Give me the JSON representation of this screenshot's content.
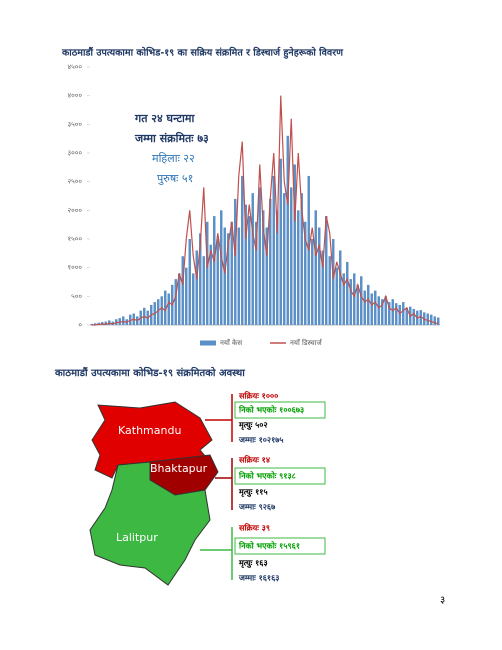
{
  "chart_data": {
    "type": "bar-line",
    "title": "काठमाडौं उपत्यकामा कोभिड-१९ का सक्रिय संक्रमित र डिस्चार्ज हुनेहरूको विवरण",
    "annotation": [
      "गत २४ घन्टामा",
      "जम्मा संक्रमितः ७३",
      "महिलाः २२",
      "पुरुषः ५१"
    ],
    "categories": [
      null,
      null,
      null,
      null,
      null,
      null,
      null,
      null,
      null,
      null,
      null,
      null,
      null,
      null,
      null,
      null,
      null,
      null,
      null,
      null,
      null,
      null,
      null,
      null,
      null,
      null,
      null,
      null,
      null,
      null,
      null,
      null,
      null,
      null,
      null,
      null,
      null,
      null,
      null,
      null,
      null,
      null,
      null,
      null,
      null,
      null,
      null,
      null,
      null,
      null,
      null,
      null,
      null,
      null,
      null,
      null,
      null,
      null,
      null,
      null,
      null,
      null,
      null,
      null,
      null,
      null,
      null,
      null,
      null,
      null,
      null,
      null,
      null,
      null,
      null,
      null,
      null,
      null,
      null,
      null,
      null,
      null,
      null,
      null,
      null,
      null,
      null,
      null,
      null,
      null,
      null,
      null,
      null,
      null,
      null,
      null,
      null,
      null,
      null,
      null
    ],
    "series": [
      {
        "name": "नयाँ केस",
        "color": "#5b8fc7",
        "kind": "bar",
        "values": [
          20,
          30,
          40,
          50,
          60,
          80,
          60,
          100,
          120,
          150,
          100,
          180,
          200,
          150,
          250,
          300,
          250,
          350,
          400,
          450,
          500,
          600,
          550,
          700,
          800,
          900,
          1200,
          1000,
          1500,
          900,
          1300,
          1600,
          1200,
          1800,
          1400,
          1900,
          1500,
          2000,
          1700,
          1600,
          1800,
          2200,
          1700,
          2600,
          2100,
          1900,
          2300,
          1800,
          2400,
          2000,
          1700,
          2200,
          2600,
          2000,
          2900,
          2300,
          3300,
          2400,
          2800,
          2000,
          2300,
          1800,
          2600,
          1500,
          2000,
          1700,
          1300,
          1900,
          1200,
          1500,
          1000,
          1300,
          900,
          1100,
          800,
          900,
          700,
          850,
          600,
          700,
          550,
          600,
          500,
          450,
          500,
          400,
          450,
          380,
          350,
          400,
          300,
          320,
          280,
          250,
          260,
          220,
          200,
          180,
          150,
          130
        ]
      },
      {
        "name": "नयाँ डिस्चार्ज",
        "color": "#c0504d",
        "kind": "line",
        "values": [
          0,
          0,
          10,
          20,
          10,
          30,
          20,
          40,
          50,
          60,
          50,
          80,
          100,
          80,
          120,
          150,
          120,
          180,
          200,
          250,
          300,
          250,
          400,
          350,
          500,
          900,
          700,
          1500,
          2000,
          1200,
          800,
          1400,
          2400,
          1000,
          1300,
          1100,
          1600,
          1200,
          900,
          1400,
          1800,
          1200,
          2600,
          3200,
          1500,
          2100,
          1600,
          1300,
          2800,
          1700,
          1200,
          2200,
          3000,
          1600,
          4000,
          2500,
          2100,
          3600,
          1800,
          3000,
          2000,
          1500,
          1300,
          1700,
          1200,
          1400,
          1000,
          1900,
          1600,
          800,
          1100,
          900,
          700,
          800,
          600,
          500,
          700,
          500,
          400,
          450,
          350,
          400,
          300,
          350,
          500,
          300,
          250,
          300,
          200,
          250,
          300,
          150,
          200,
          120,
          150,
          100,
          80,
          60,
          40,
          20
        ]
      }
    ],
    "ylim": [
      0,
      4500
    ],
    "yticks": [
      {
        "value": 0,
        "label": "०"
      },
      {
        "value": 500,
        "label": "५००"
      },
      {
        "value": 1000,
        "label": "१०००"
      },
      {
        "value": 1500,
        "label": "१५००"
      },
      {
        "value": 2000,
        "label": "२०००"
      },
      {
        "value": 2500,
        "label": "२५००"
      },
      {
        "value": 3000,
        "label": "३०००"
      },
      {
        "value": 3500,
        "label": "३५००"
      },
      {
        "value": 4000,
        "label": "४०००"
      },
      {
        "value": 4500,
        "label": "४५००"
      }
    ],
    "grid": false,
    "legend": "bottom"
  },
  "map_section": {
    "title": "काठमाडौं उपत्यकामा कोभिड-१९ संक्रमितको अवस्था",
    "districts": [
      {
        "name": "Kathmandu",
        "active": "सक्रियः १०००",
        "recovered": "निको भएकोः १००६७३",
        "deaths": "मृत्युः ५०२",
        "total": "जम्माः १०२१७५"
      },
      {
        "name": "Bhaktapur",
        "active": "सक्रियः १४",
        "recovered": "निको भएकोः ९१३८",
        "deaths": "मृत्युः ११५",
        "total": "जम्माः ९२६७"
      },
      {
        "name": "Lalitpur",
        "active": "सक्रियः ३९",
        "recovered": "निको भएकोः १५९६१",
        "deaths": "मृत्युः १६३",
        "total": "जम्माः १६१६३"
      }
    ]
  },
  "page_number": "३"
}
